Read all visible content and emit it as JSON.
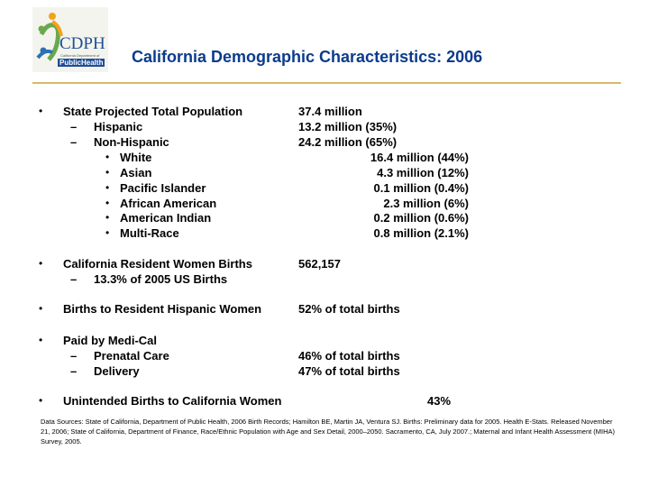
{
  "logo": {
    "brand": "CDPH",
    "subtitle1": "California Department of",
    "subtitle2": "PublicHealth"
  },
  "title": "California Demographic Characteristics: 2006",
  "bullet_glyph": "•",
  "dash_glyph": "–",
  "population": {
    "label": "State Projected Total Population",
    "value": "37.4 million",
    "hispanic": {
      "label": "Hispanic",
      "value": "13.2 million (35%)"
    },
    "non_hispanic": {
      "label": "Non-Hispanic",
      "value": "24.2 million (65%)"
    },
    "groups": [
      {
        "label": "White",
        "value": "16.4 million (44%)"
      },
      {
        "label": "Asian",
        "value": "4.3 million (12%)"
      },
      {
        "label": "Pacific Islander",
        "value": "0.1 million (0.4%)"
      },
      {
        "label": "African American",
        "value": "2.3 million (6%)"
      },
      {
        "label": "American Indian",
        "value": "0.2 million (0.6%)"
      },
      {
        "label": "Multi-Race",
        "value": "0.8 million (2.1%)"
      }
    ]
  },
  "births": {
    "label": "California Resident Women Births",
    "value": "562,157",
    "sub": "13.3% of 2005 US Births"
  },
  "hispanic_births": {
    "label": "Births to Resident Hispanic Women",
    "value": "52% of total births"
  },
  "medi_cal": {
    "label": "Paid by Medi-Cal",
    "prenatal": {
      "label": "Prenatal Care",
      "value": "46% of total births"
    },
    "delivery": {
      "label": "Delivery",
      "value": "47% of total births"
    }
  },
  "unintended": {
    "label": "Unintended Births to California Women",
    "value": "43%"
  },
  "sources": "Data Sources: State of California, Department of Public Health, 2006 Birth Records; Hamilton BE, Martin JA, Ventura SJ. Births: Preliminary data for 2005. Health E-Stats. Released November 21, 2006; State of California, Department of Finance, Race/Ethnic Population with Age and Sex Detail, 2000–2050. Sacramento, CA, July 2007.; Maternal and Infant Health Assessment (MIHA) Survey, 2005."
}
